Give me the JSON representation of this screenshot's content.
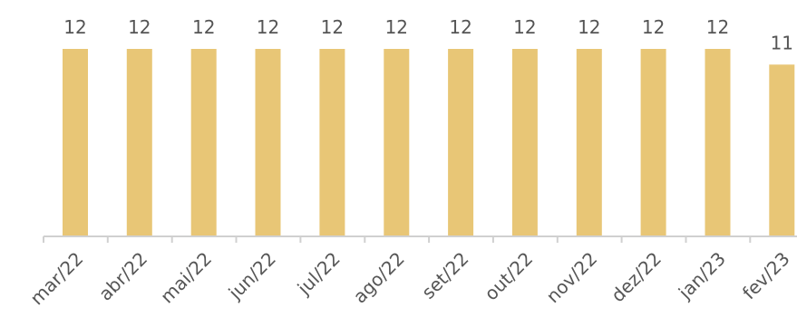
{
  "chart_data": {
    "type": "bar",
    "categories": [
      "mar/22",
      "abr/22",
      "mai/22",
      "jun/22",
      "jul/22",
      "ago/22",
      "set/22",
      "out/22",
      "nov/22",
      "dez/22",
      "jan/23",
      "fev/23"
    ],
    "values": [
      12,
      12,
      12,
      12,
      12,
      12,
      12,
      12,
      12,
      12,
      12,
      11
    ],
    "title": "",
    "xlabel": "",
    "ylabel": "",
    "ylim": [
      0,
      12
    ],
    "grid": false,
    "bar_color": "#E8C676"
  }
}
